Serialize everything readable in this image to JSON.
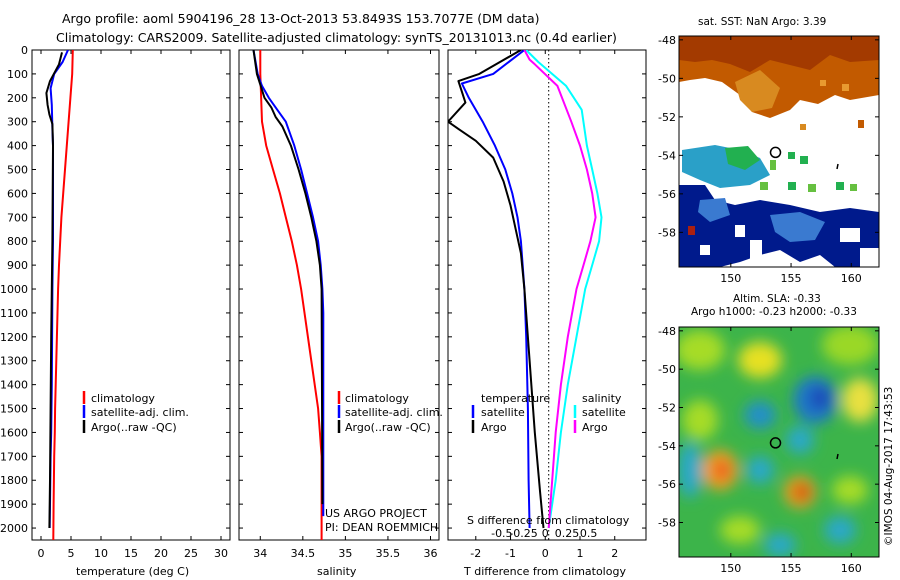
{
  "header": {
    "title_line1": "Argo profile: aoml 5904196_28 13-Oct-2013 53.8493S 153.7077E (DM data)",
    "title_line2": "Climatology: CARS2009. Satellite-adjusted climatology: synTS_20131013.nc (0.4d earlier)"
  },
  "colors": {
    "climatology": "#ff0000",
    "satellite": "#0000ff",
    "argo": "#000000",
    "sal_satellite": "#00ffff",
    "sal_argo": "#ff00ff"
  },
  "chart_data": [
    {
      "id": "temperature",
      "type": "line",
      "xlabel": "temperature (deg C)",
      "ylabel": "",
      "xlim": [
        -1.5,
        31.5
      ],
      "ylim": [
        2050,
        0
      ],
      "xticks": [
        0,
        5,
        10,
        15,
        20,
        25,
        30
      ],
      "xtick_labels": [
        "0",
        "5",
        "10",
        "15",
        "20",
        "25",
        "30"
      ],
      "yticks": [
        0,
        100,
        200,
        300,
        400,
        500,
        600,
        700,
        800,
        900,
        1000,
        1100,
        1200,
        1300,
        1400,
        1500,
        1600,
        1700,
        1800,
        1900,
        2000
      ],
      "legend": [
        "climatology",
        "satellite-adj. clim.",
        "Argo(..raw -QC)"
      ],
      "series": [
        {
          "name": "climatology",
          "color": "#ff0000",
          "x": [
            5.3,
            5.2,
            4.9,
            4.6,
            4.3,
            4.0,
            3.7,
            3.4,
            3.2,
            3.0,
            2.85,
            2.75,
            2.65,
            2.55,
            2.45,
            2.35,
            2.3,
            2.2,
            2.15,
            2.1,
            2.05
          ],
          "y": [
            0,
            100,
            200,
            300,
            400,
            500,
            600,
            700,
            800,
            900,
            1000,
            1100,
            1200,
            1300,
            1400,
            1500,
            1600,
            1700,
            1800,
            1900,
            2050
          ]
        },
        {
          "name": "satellite-adj. clim.",
          "color": "#0000ff",
          "x": [
            4.5,
            3.6,
            2.2,
            1.6,
            1.8,
            1.9,
            2.0,
            2.0,
            2.0,
            2.0,
            2.0,
            1.95,
            1.9,
            1.85,
            1.8,
            1.75,
            1.7,
            1.6,
            1.55,
            1.5,
            1.45
          ],
          "y": [
            0,
            50,
            100,
            160,
            230,
            330,
            400,
            500,
            600,
            700,
            800,
            900,
            1000,
            1200,
            1400,
            1500,
            1600,
            1700,
            1800,
            1900,
            2000
          ]
        },
        {
          "name": "Argo(..raw -QC)",
          "color": "#000000",
          "x": [
            3.5,
            3.0,
            1.5,
            0.9,
            1.1,
            1.4,
            1.9,
            2.0,
            1.95,
            1.9,
            1.8,
            1.7,
            1.6,
            1.5,
            1.4
          ],
          "y": [
            10,
            60,
            130,
            180,
            230,
            270,
            310,
            400,
            600,
            800,
            1000,
            1200,
            1500,
            1800,
            2000
          ]
        }
      ]
    },
    {
      "id": "salinity",
      "type": "line",
      "xlabel": "salinity",
      "ylabel": "",
      "xlim": [
        33.75,
        36.1
      ],
      "ylim": [
        2050,
        0
      ],
      "xticks": [
        34,
        34.5,
        35,
        35.5,
        36
      ],
      "xtick_labels": [
        "34",
        "34.5",
        "35",
        "35.5",
        "36"
      ],
      "legend": [
        "climatology",
        "satellite-adj. clim.",
        "Argo(..raw -QC)"
      ],
      "annotation": [
        "US ARGO PROJECT",
        "PI: DEAN ROEMMICH"
      ],
      "series": [
        {
          "name": "climatology",
          "color": "#ff0000",
          "x": [
            34.0,
            34.0,
            34.02,
            34.07,
            34.15,
            34.23,
            34.3,
            34.37,
            34.43,
            34.48,
            34.52,
            34.56,
            34.6,
            34.64,
            34.68,
            34.7,
            34.72,
            34.72
          ],
          "y": [
            0,
            100,
            300,
            400,
            500,
            600,
            700,
            800,
            900,
            1000,
            1100,
            1200,
            1300,
            1400,
            1500,
            1600,
            1700,
            2050
          ]
        },
        {
          "name": "satellite-adj. clim.",
          "color": "#0000ff",
          "x": [
            33.92,
            33.97,
            34.02,
            34.1,
            34.2,
            34.3,
            34.4,
            34.48,
            34.55,
            34.62,
            34.68,
            34.71,
            34.73,
            34.74,
            34.74
          ],
          "y": [
            0,
            100,
            150,
            200,
            250,
            300,
            400,
            500,
            600,
            700,
            800,
            900,
            1000,
            1100,
            1950
          ]
        },
        {
          "name": "Argo(..raw -QC)",
          "color": "#000000",
          "x": [
            33.92,
            33.96,
            34.05,
            34.13,
            34.18,
            34.26,
            34.36,
            34.45,
            34.53,
            34.6,
            34.66,
            34.7,
            34.72,
            34.73
          ],
          "y": [
            0,
            100,
            200,
            240,
            280,
            320,
            400,
            500,
            600,
            700,
            800,
            900,
            1000,
            1900
          ]
        }
      ]
    },
    {
      "id": "difference",
      "type": "line",
      "xlabel": "T difference from climatology",
      "xlabel_top": "S difference from climatology",
      "xlim": [
        -2.8,
        2.9
      ],
      "ylim": [
        2050,
        0
      ],
      "xticks": [
        -2,
        -1,
        0,
        1,
        2
      ],
      "xtick_labels": [
        "-2",
        "-1",
        "0",
        "1",
        "2"
      ],
      "xticks_top": [
        -0.5,
        -0.25,
        0,
        0.25,
        0.5
      ],
      "xtick_labels_top": [
        "-0.5",
        "-0.25",
        "0",
        "0.25",
        "0.5"
      ],
      "legend_left_title": "temperature",
      "legend_left": [
        "satellite",
        "Argo"
      ],
      "legend_right_title": "salinity",
      "legend_right": [
        "satellite",
        "Argo"
      ],
      "series": [
        {
          "name": "satellite",
          "color": "#0000ff",
          "x": [
            -0.6,
            -1.5,
            -2.4,
            -2.2,
            -1.8,
            -1.45,
            -1.15,
            -0.95,
            -0.8,
            -0.7,
            -0.6,
            -0.55,
            -0.5,
            -0.48,
            -0.45
          ],
          "y": [
            0,
            100,
            140,
            200,
            300,
            400,
            500,
            600,
            700,
            800,
            1000,
            1200,
            1500,
            1800,
            2000
          ]
        },
        {
          "name": "Argo",
          "color": "#000000",
          "x": [
            -0.7,
            -1.9,
            -2.5,
            -2.3,
            -2.8,
            -2.5,
            -2.0,
            -1.5,
            -1.2,
            -1.0,
            -0.85,
            -0.7,
            -0.6,
            -0.45,
            -0.3,
            -0.15,
            -0.05
          ],
          "y": [
            0,
            100,
            130,
            220,
            300,
            330,
            380,
            450,
            550,
            650,
            750,
            850,
            1000,
            1300,
            1600,
            1850,
            2000
          ]
        },
        {
          "name": "satellite",
          "color": "#00ffff",
          "x": [
            -0.55,
            -0.2,
            0.6,
            1.05,
            1.2,
            1.35,
            1.5,
            1.62,
            1.55,
            1.35,
            1.15,
            0.9,
            0.65,
            0.45,
            0.3,
            0.2,
            0.1
          ],
          "y": [
            0,
            50,
            150,
            250,
            400,
            500,
            600,
            700,
            800,
            900,
            1000,
            1200,
            1400,
            1600,
            1800,
            1900,
            2000
          ]
        },
        {
          "name": "Argo",
          "color": "#ff00ff",
          "x": [
            -0.6,
            -0.45,
            -0.3,
            0.35,
            0.75,
            1.0,
            1.2,
            1.35,
            1.45,
            1.3,
            1.1,
            0.9,
            0.65,
            0.45,
            0.3,
            0.2,
            0.1
          ],
          "y": [
            0,
            40,
            60,
            150,
            300,
            400,
            500,
            600,
            700,
            800,
            900,
            1000,
            1200,
            1400,
            1600,
            1800,
            2000
          ]
        }
      ]
    },
    {
      "id": "sst_map",
      "type": "heatmap",
      "title": "sat. SST: NaN Argo: 3.39",
      "xlim": [
        145.7,
        162.3
      ],
      "ylim": [
        -59.8,
        -47.8
      ],
      "xticks": [
        150,
        155,
        160
      ],
      "xtick_labels": [
        "150",
        "155",
        "160"
      ],
      "yticks": [
        -48,
        -50,
        -52,
        -54,
        -56,
        -58
      ],
      "ytick_labels": [
        "-48",
        "-50",
        "-52",
        "-54",
        "-56",
        "-58"
      ],
      "marker": {
        "lon": 153.7077,
        "lat": -53.8493
      }
    },
    {
      "id": "sla_map",
      "type": "heatmap",
      "title": "Altim. SLA: -0.33",
      "subtitle": "Argo h1000: -0.23 h2000: -0.33",
      "xlim": [
        145.7,
        162.3
      ],
      "ylim": [
        -59.8,
        -47.8
      ],
      "xticks": [
        150,
        155,
        160
      ],
      "xtick_labels": [
        "150",
        "155",
        "160"
      ],
      "yticks": [
        -48,
        -50,
        -52,
        -54,
        -56,
        -58
      ],
      "ytick_labels": [
        "-48",
        "-50",
        "-52",
        "-54",
        "-56",
        "-58"
      ],
      "marker": {
        "lon": 153.7077,
        "lat": -53.8493
      }
    }
  ],
  "credit": "©IMOS 04-Aug-2017 17:43:53"
}
